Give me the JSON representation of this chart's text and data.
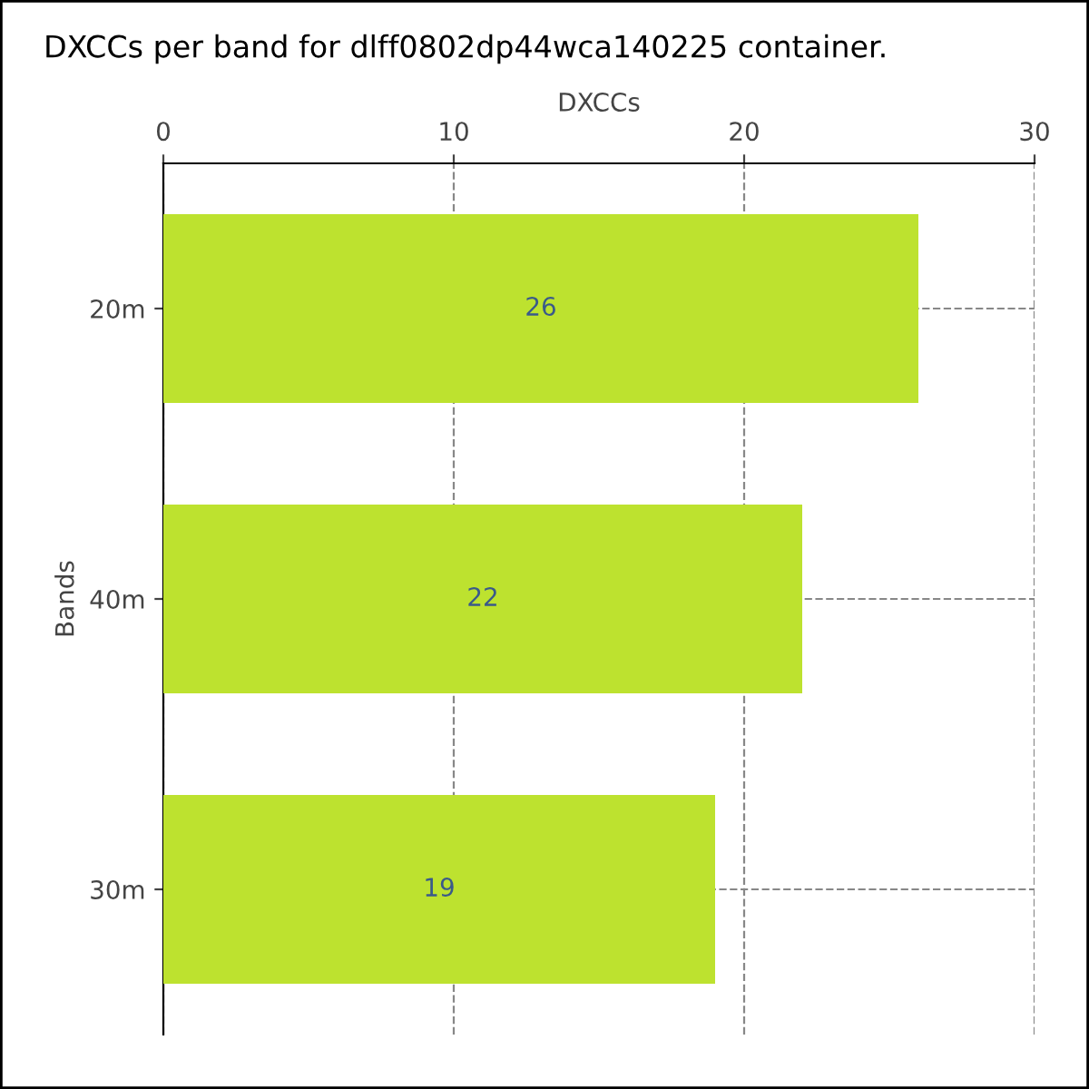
{
  "chart_data": {
    "type": "bar",
    "orientation": "horizontal",
    "title": "DXCCs per band for dlff0802dp44wca140225 container.",
    "xlabel": "DXCCs",
    "ylabel": "Bands",
    "categories": [
      "20m",
      "40m",
      "30m"
    ],
    "values": [
      26,
      22,
      19
    ],
    "color": "#bde22f",
    "xlim": [
      0,
      30
    ],
    "xticks": [
      0,
      10,
      20,
      30
    ],
    "grid": true,
    "data_labels": true
  }
}
